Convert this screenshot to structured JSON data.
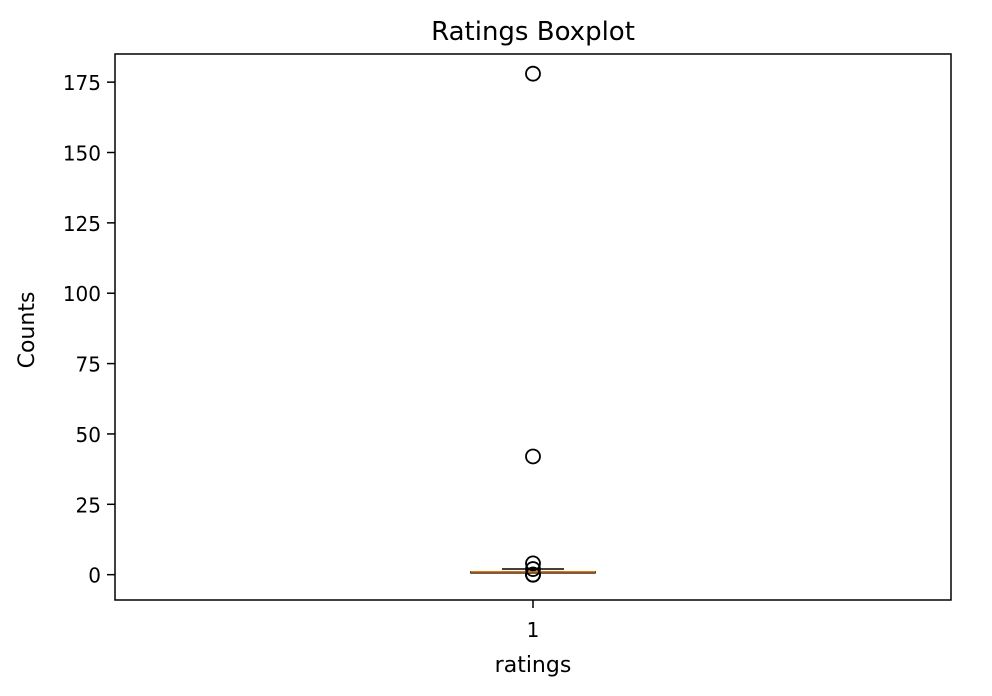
{
  "chart_data": {
    "type": "boxplot",
    "title": "Ratings Boxplot",
    "xlabel": "ratings",
    "ylabel": "Counts",
    "categories": [
      "1"
    ],
    "ylim": [
      -9,
      185
    ],
    "yticks": [
      0,
      25,
      50,
      75,
      100,
      125,
      150,
      175
    ],
    "series": [
      {
        "box": {
          "whisker_low": 1,
          "q1": 1,
          "median": 1,
          "q3": 1,
          "whisker_high": 2
        },
        "outliers": [
          178,
          42,
          4,
          2,
          0,
          0,
          0
        ]
      }
    ],
    "grid": false,
    "colors": {
      "median": "#ff7f0e",
      "box": "#000000",
      "frame": "#000000"
    }
  }
}
